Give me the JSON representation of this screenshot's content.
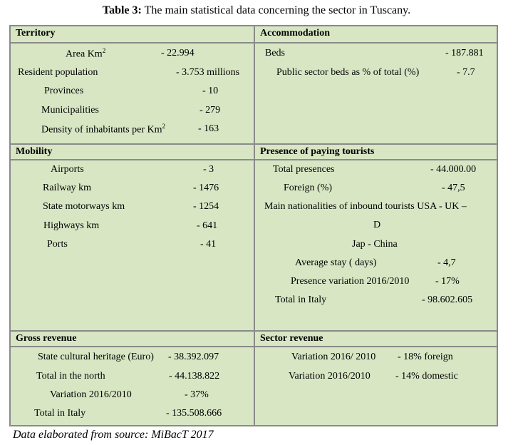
{
  "title": {
    "bold": "Table 3:",
    "text": " The main statistical data concerning the sector in Tuscany."
  },
  "territory": {
    "header": "Territory",
    "rows": [
      {
        "label": "Area Km",
        "sup": "2",
        "value": "- 22.994"
      },
      {
        "label": "Resident population",
        "value": "- 3.753 millions"
      },
      {
        "label": "Provinces",
        "value": "- 10"
      },
      {
        "label": "Municipalities",
        "value": "- 279"
      },
      {
        "label": "Density of inhabitants per Km",
        "sup": "2",
        "value": "- 163"
      }
    ]
  },
  "accommodation": {
    "header": "Accommodation",
    "rows": [
      {
        "label": "Beds",
        "value": "- 187.881"
      },
      {
        "label": "Public sector  beds  as % of total (%)",
        "value": "- 7.7"
      }
    ]
  },
  "mobility": {
    "header": "Mobility",
    "rows": [
      {
        "label": "Airports",
        "value": "- 3"
      },
      {
        "label": "Railway km",
        "value": "- 1476"
      },
      {
        "label": "State motorways km",
        "value": "- 1254"
      },
      {
        "label": "Highways km",
        "value": "- 641"
      },
      {
        "label": "Ports",
        "value": "- 41"
      }
    ]
  },
  "tourists": {
    "header": "Presence of paying tourists",
    "rows": [
      {
        "label": "Total presences",
        "value": "- 44.000.00"
      },
      {
        "label": "Foreign (%)",
        "value": "-  47,5"
      },
      {
        "label": "Main nationalities of inbound tourists  USA - UK –",
        "value": ""
      },
      {
        "label": "D",
        "value": ""
      },
      {
        "label": "Jap - China",
        "value": ""
      },
      {
        "label": "Average  stay  ( days)",
        "value": "- 4,7"
      },
      {
        "label": "Presence variation  2016/2010",
        "value": "- 17%"
      },
      {
        "label": "Total in  Italy",
        "value": "-  98.602.605"
      }
    ]
  },
  "gross_revenue": {
    "header": "Gross revenue",
    "rows": [
      {
        "label": "State cultural heritage (Euro)",
        "value": "- 38.392.097"
      },
      {
        "label": "Total in the north",
        "value": "- 44.138.822"
      },
      {
        "label": "Variation 2016/2010",
        "value": "- 37%"
      },
      {
        "label": "Total in Italy",
        "value": "- 135.508.666"
      }
    ]
  },
  "sector_revenue": {
    "header": "Sector revenue",
    "rows": [
      {
        "label": "Variation  2016/ 2010",
        "value": "- 18%  foreign"
      },
      {
        "label": "Variation 2016/2010",
        "value": "- 14% domestic"
      }
    ]
  },
  "source": "Data elaborated from source: MiBacT 2017"
}
